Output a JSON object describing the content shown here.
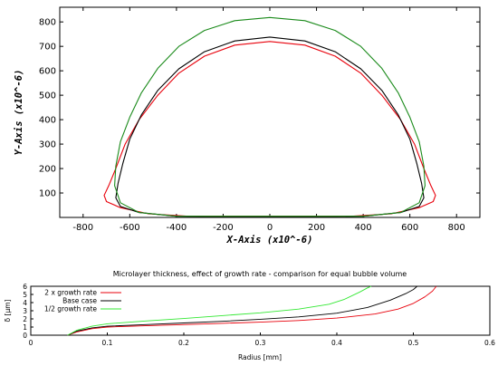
{
  "chart_data": [
    {
      "type": "line",
      "title": "",
      "xlabel": "X-Axis (x10^-6)",
      "ylabel": "Y-Axis (x10^-6)",
      "xlim": [
        -900,
        900
      ],
      "ylim": [
        0,
        860
      ],
      "xticks": [
        "-800",
        "-600",
        "-400",
        "-200",
        "0",
        "200",
        "400",
        "600",
        "800"
      ],
      "yticks": [
        "100",
        "200",
        "300",
        "400",
        "500",
        "600",
        "700",
        "800"
      ],
      "grid": false,
      "series": [
        {
          "color": "#e8000b",
          "x": [
            0,
            150,
            280,
            390,
            480,
            560,
            620,
            660,
            690,
            710,
            700,
            640,
            520,
            350,
            0,
            -350,
            -520,
            -640,
            -700,
            -710,
            -690,
            -660,
            -620,
            -560,
            -480,
            -390,
            -280,
            -150,
            0
          ],
          "y": [
            720,
            705,
            660,
            590,
            500,
            400,
            300,
            200,
            130,
            90,
            65,
            40,
            15,
            5,
            5,
            5,
            15,
            40,
            65,
            90,
            130,
            200,
            300,
            400,
            500,
            590,
            660,
            705,
            720
          ]
        },
        {
          "color": "#000000",
          "x": [
            0,
            150,
            280,
            390,
            480,
            550,
            600,
            630,
            650,
            660,
            640,
            560,
            400,
            200,
            0,
            -200,
            -400,
            -560,
            -640,
            -660,
            -650,
            -630,
            -600,
            -550,
            -480,
            -390,
            -280,
            -150,
            0
          ],
          "y": [
            738,
            722,
            678,
            608,
            520,
            420,
            320,
            220,
            140,
            80,
            45,
            20,
            5,
            3,
            3,
            3,
            5,
            20,
            45,
            80,
            140,
            220,
            320,
            420,
            520,
            608,
            678,
            722,
            738
          ]
        },
        {
          "color": "#1a8a1a",
          "x": [
            0,
            150,
            280,
            390,
            480,
            550,
            600,
            640,
            660,
            665,
            640,
            560,
            400,
            0,
            -400,
            -560,
            -640,
            -665,
            -660,
            -640,
            -600,
            -550,
            -480,
            -390,
            -280,
            -150,
            0
          ],
          "y": [
            818,
            805,
            765,
            700,
            610,
            510,
            410,
            310,
            210,
            130,
            60,
            20,
            5,
            5,
            5,
            20,
            60,
            130,
            210,
            310,
            410,
            510,
            610,
            700,
            765,
            805,
            818
          ]
        }
      ]
    },
    {
      "type": "line",
      "title": "Microlayer thickness, effect of growth rate - comparison for equal bubble volume",
      "xlabel": "Radius [mm]",
      "ylabel": "δ [µm]",
      "xlim": [
        0,
        0.6
      ],
      "ylim": [
        0,
        6
      ],
      "xticks": [
        "0",
        "0.1",
        "0.2",
        "0.3",
        "0.4",
        "0.5",
        "0.6"
      ],
      "yticks": [
        "0",
        "1",
        "2",
        "3",
        "4",
        "5",
        "6"
      ],
      "legend": "top-left",
      "series": [
        {
          "name": "2 x growth rate",
          "color": "#e8000b",
          "x": [
            0.048,
            0.06,
            0.08,
            0.1,
            0.15,
            0.2,
            0.25,
            0.3,
            0.35,
            0.4,
            0.45,
            0.48,
            0.5,
            0.515,
            0.525,
            0.53
          ],
          "y": [
            0,
            0.4,
            0.8,
            1.0,
            1.15,
            1.3,
            1.45,
            1.6,
            1.8,
            2.1,
            2.6,
            3.2,
            3.9,
            4.7,
            5.4,
            6
          ]
        },
        {
          "name": "Base case",
          "color": "#000000",
          "x": [
            0.048,
            0.06,
            0.08,
            0.1,
            0.15,
            0.2,
            0.25,
            0.3,
            0.35,
            0.4,
            0.44,
            0.47,
            0.49,
            0.5,
            0.505
          ],
          "y": [
            0,
            0.5,
            0.9,
            1.1,
            1.3,
            1.5,
            1.7,
            1.95,
            2.25,
            2.7,
            3.4,
            4.3,
            5.1,
            5.6,
            6
          ]
        },
        {
          "name": "1/2 growth rate",
          "color": "#33e833",
          "x": [
            0.048,
            0.06,
            0.08,
            0.1,
            0.15,
            0.2,
            0.25,
            0.3,
            0.35,
            0.39,
            0.41,
            0.43,
            0.44,
            0.445
          ],
          "y": [
            0,
            0.6,
            1.1,
            1.4,
            1.75,
            2.05,
            2.4,
            2.75,
            3.2,
            3.8,
            4.4,
            5.3,
            5.8,
            6
          ]
        }
      ]
    }
  ]
}
